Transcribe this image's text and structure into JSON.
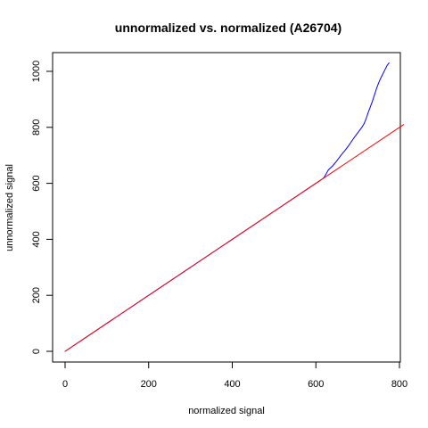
{
  "chart_data": {
    "type": "line",
    "title": "unnormalized vs. normalized (A26704)",
    "xlabel": "normalized signal",
    "ylabel": "unnormalized signal",
    "xlim": [
      0,
      800
    ],
    "ylim": [
      0,
      1050
    ],
    "x_ticks": [
      0,
      200,
      400,
      600,
      800
    ],
    "y_ticks": [
      0,
      200,
      400,
      600,
      800,
      1000
    ],
    "grid": false,
    "legend": "none",
    "series": [
      {
        "color": "#0000ff",
        "style": "line",
        "points": [
          [
            0,
            0
          ],
          [
            100,
            100
          ],
          [
            200,
            200
          ],
          [
            300,
            300
          ],
          [
            400,
            400
          ],
          [
            500,
            500
          ],
          [
            600,
            600
          ],
          [
            615,
            615
          ],
          [
            620,
            622
          ],
          [
            625,
            635
          ],
          [
            630,
            648
          ],
          [
            640,
            662
          ],
          [
            650,
            680
          ],
          [
            660,
            700
          ],
          [
            670,
            718
          ],
          [
            680,
            738
          ],
          [
            690,
            760
          ],
          [
            700,
            780
          ],
          [
            710,
            800
          ],
          [
            715,
            812
          ],
          [
            720,
            830
          ],
          [
            725,
            852
          ],
          [
            730,
            872
          ],
          [
            735,
            892
          ],
          [
            740,
            915
          ],
          [
            745,
            938
          ],
          [
            750,
            958
          ],
          [
            755,
            975
          ],
          [
            760,
            990
          ],
          [
            765,
            1005
          ],
          [
            770,
            1020
          ],
          [
            775,
            1030
          ]
        ]
      },
      {
        "color": "#ff0000",
        "style": "line",
        "points": [
          [
            0,
            0
          ],
          [
            810,
            810
          ]
        ]
      }
    ]
  }
}
